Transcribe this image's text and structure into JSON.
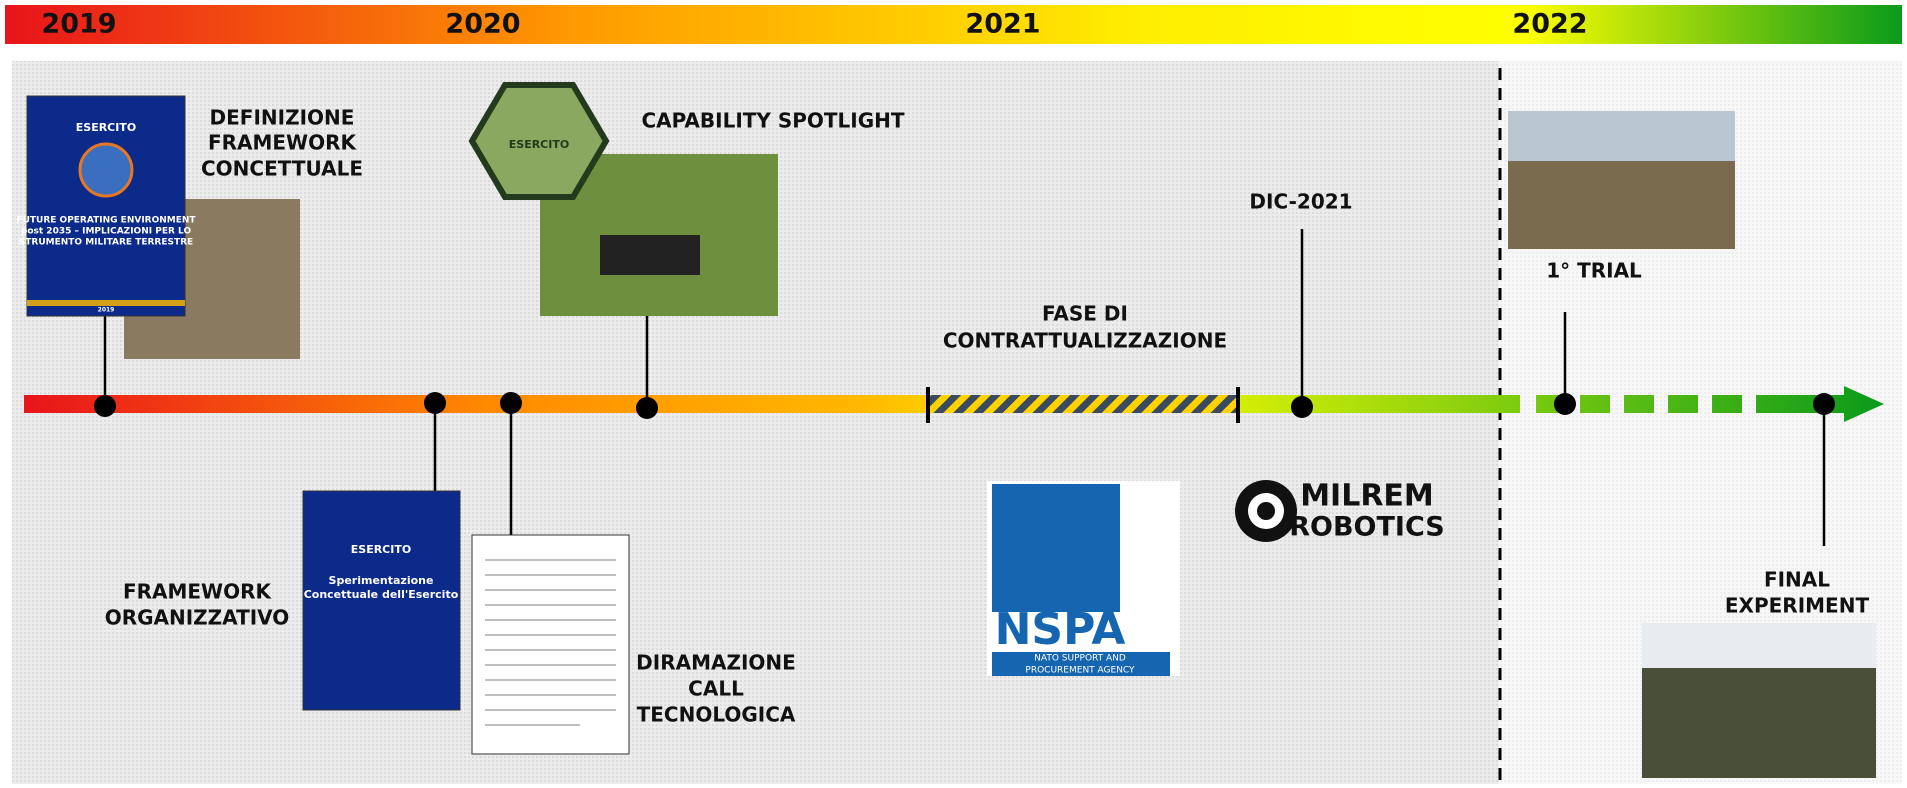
{
  "years": [
    "2019",
    "2020",
    "2021",
    "2022"
  ],
  "events": {
    "definizione": [
      "DEFINIZIONE",
      "FRAMEWORK",
      "CONCETTUALE"
    ],
    "capability": "CAPABILITY SPOTLIGHT",
    "dic": "DIC-2021",
    "fase": [
      "FASE DI",
      "CONTRATTUALIZZAZIONE"
    ],
    "trial": "1° TRIAL",
    "organizzativo": [
      "FRAMEWORK",
      "ORGANIZZATIVO"
    ],
    "diramazione": [
      "DIRAMAZIONE",
      "CALL",
      "TECNOLOGICA"
    ],
    "final": [
      "FINAL",
      "EXPERIMENT"
    ]
  },
  "images": {
    "book1": {
      "brand": "ESERCITO",
      "title": [
        "FUTURE OPERATING ENVIRONMENT",
        "post 2035 – IMPLICAZIONI PER LO",
        "STRUMENTO MILITARE TERRESTRE"
      ],
      "year": "2019"
    },
    "badge": "ESERCITO",
    "book2": {
      "brand": "ESERCITO",
      "title": [
        "Sperimentazione",
        "Concettuale dell'Esercito"
      ]
    },
    "nspa": {
      "logo": "NSPA",
      "name": [
        "NATO SUPPORT AND",
        "PROCUREMENT AGENCY"
      ]
    },
    "milrem": [
      "MILREM",
      "ROBOTICS"
    ]
  }
}
